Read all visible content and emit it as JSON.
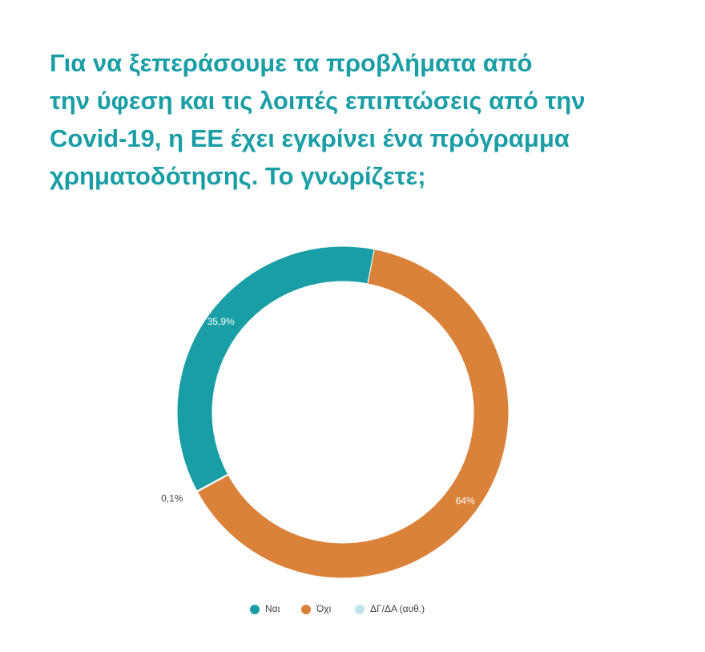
{
  "chart_data": {
    "type": "donut",
    "title": [
      "Για να ξεπεράσουμε τα προβλήματα από",
      "την ύφεση και τις λοιπές επιπτώσεις από την",
      "Covid-19, η ΕΕ έχει εγκρίνει ένα πρόγραμμα",
      "χρηματοδότησης. Το γνωρίζετε;"
    ],
    "categories": [
      "Ναι",
      "Όχι",
      "ΔΓ/ΔΑ (αυθ.)"
    ],
    "values": [
      35.9,
      64,
      0.1
    ],
    "value_labels": [
      "35,9%",
      "64%",
      "0,1%"
    ],
    "colors": [
      "#1a9ea6",
      "#da823a",
      "#bfe4ea"
    ],
    "legend": "bottom"
  }
}
